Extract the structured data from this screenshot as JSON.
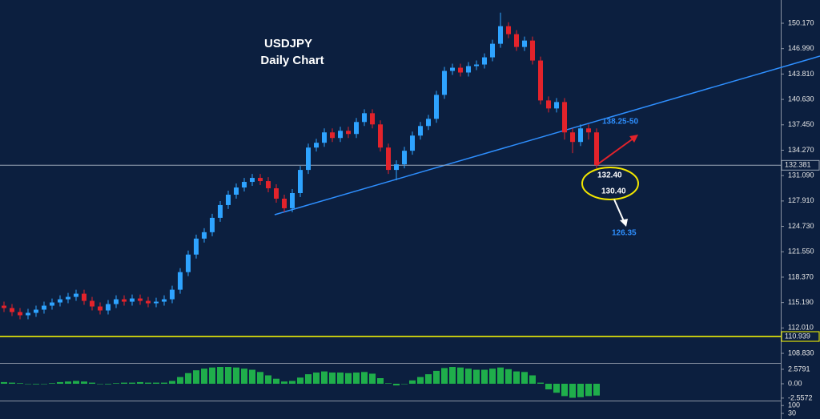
{
  "chart_data": [
    {
      "type": "candlestick",
      "title": "USDJPY",
      "subtitle": "Daily Chart",
      "open": [
        114.8,
        114.5,
        114.0,
        113.6,
        113.9,
        114.3,
        114.8,
        115.2,
        115.6,
        115.9,
        116.3,
        115.4,
        114.7,
        114.2,
        115.0,
        115.6,
        115.3,
        115.7,
        115.4,
        115.1,
        115.3,
        115.6,
        116.8,
        119.0,
        121.2,
        123.2,
        124.0,
        125.8,
        127.4,
        128.7,
        129.6,
        130.3,
        130.8,
        130.4,
        129.5,
        128.2,
        127.0,
        128.9,
        131.8,
        134.6,
        135.2,
        136.5,
        135.8,
        136.7,
        136.3,
        137.8,
        138.9,
        137.5,
        134.6,
        131.8,
        132.5,
        134.2,
        136.1,
        137.3,
        138.2,
        141.2,
        144.2,
        144.6,
        144.0,
        144.8,
        145.0,
        145.9,
        147.6,
        149.8,
        148.8,
        147.2,
        148.0,
        145.5,
        140.5,
        139.5,
        140.3,
        136.5,
        135.3,
        137.0,
        136.5
      ],
      "high": [
        115.3,
        115.0,
        114.5,
        114.4,
        114.8,
        115.3,
        115.7,
        116.1,
        116.4,
        116.8,
        116.8,
        115.9,
        115.2,
        115.5,
        116.1,
        116.1,
        116.2,
        116.2,
        115.9,
        115.8,
        116.1,
        117.3,
        119.5,
        121.7,
        123.7,
        124.5,
        126.3,
        127.9,
        129.2,
        130.1,
        130.8,
        131.3,
        131.3,
        130.9,
        130.0,
        128.7,
        129.4,
        132.3,
        135.1,
        135.7,
        137.0,
        137.0,
        137.2,
        137.2,
        138.3,
        139.4,
        139.4,
        138.0,
        135.1,
        133.0,
        134.7,
        136.6,
        137.8,
        138.7,
        141.7,
        144.7,
        145.1,
        145.1,
        145.3,
        145.5,
        146.4,
        148.1,
        151.5,
        150.3,
        149.3,
        148.5,
        148.5,
        146.0,
        141.0,
        140.8,
        140.8,
        137.0,
        137.5,
        137.5,
        137.0
      ],
      "low": [
        114.0,
        113.5,
        113.1,
        113.1,
        113.4,
        113.8,
        114.3,
        114.7,
        115.1,
        115.4,
        114.9,
        114.2,
        113.7,
        113.7,
        114.5,
        114.8,
        114.8,
        114.9,
        114.6,
        114.6,
        114.8,
        115.1,
        116.3,
        118.5,
        120.7,
        122.7,
        123.5,
        125.3,
        126.9,
        128.2,
        129.1,
        129.8,
        129.9,
        129.0,
        127.7,
        126.5,
        126.5,
        128.4,
        131.3,
        134.1,
        134.7,
        135.3,
        135.3,
        135.8,
        135.8,
        137.3,
        137.0,
        134.1,
        131.3,
        130.5,
        132.0,
        133.7,
        135.6,
        136.8,
        137.7,
        140.7,
        143.7,
        143.5,
        143.5,
        144.3,
        144.5,
        145.4,
        147.1,
        148.3,
        146.7,
        146.7,
        145.0,
        140.0,
        139.0,
        139.0,
        135.6,
        133.9,
        134.8,
        135.6,
        132.0
      ],
      "close": [
        114.5,
        114.0,
        113.6,
        113.9,
        114.3,
        114.8,
        115.2,
        115.6,
        115.9,
        116.3,
        115.4,
        114.7,
        114.2,
        115.0,
        115.6,
        115.3,
        115.7,
        115.4,
        115.1,
        115.3,
        115.6,
        116.8,
        119.0,
        121.2,
        123.2,
        124.0,
        125.8,
        127.4,
        128.7,
        129.6,
        130.3,
        130.8,
        130.4,
        129.5,
        128.2,
        127.0,
        128.9,
        131.8,
        134.6,
        135.2,
        136.5,
        135.8,
        136.7,
        136.3,
        137.8,
        138.9,
        137.5,
        134.6,
        131.8,
        132.5,
        134.2,
        136.1,
        137.3,
        138.2,
        141.2,
        144.2,
        144.6,
        144.0,
        144.8,
        145.0,
        145.9,
        147.6,
        149.8,
        148.8,
        147.2,
        148.0,
        145.5,
        140.5,
        139.5,
        140.3,
        136.5,
        135.3,
        137.0,
        136.5,
        132.4
      ],
      "up_color": "#2ea3ff",
      "down_color": "#e3232b",
      "ylim": [
        107.63,
        153.08
      ],
      "yticks": [
        {
          "value": 150.17,
          "label": "150.170"
        },
        {
          "value": 146.99,
          "label": "146.990"
        },
        {
          "value": 143.81,
          "label": "143.810"
        },
        {
          "value": 140.63,
          "label": "140.630"
        },
        {
          "value": 137.45,
          "label": "137.450"
        },
        {
          "value": 134.27,
          "label": "134.270"
        },
        {
          "value": 131.09,
          "label": "131.090"
        },
        {
          "value": 127.91,
          "label": "127.910"
        },
        {
          "value": 124.73,
          "label": "124.730"
        },
        {
          "value": 121.55,
          "label": "121.550"
        },
        {
          "value": 118.37,
          "label": "118.370"
        },
        {
          "value": 115.19,
          "label": "115.190"
        },
        {
          "value": 112.01,
          "label": "112.010"
        },
        {
          "value": 108.83,
          "label": "108.830"
        }
      ],
      "levels": [
        {
          "value": 132.381,
          "label": "132.381",
          "color": "#9aa6b6"
        },
        {
          "value": 110.939,
          "label": "110.939",
          "color": "#ffff00"
        }
      ],
      "annotations": [
        "138.25-50",
        "132.40",
        "130.40",
        "126.35"
      ]
    },
    {
      "type": "histogram",
      "color": "#1fae4b",
      "values": [
        0.3,
        0.2,
        0.1,
        0.0,
        -0.1,
        0.0,
        0.1,
        0.3,
        0.4,
        0.5,
        0.4,
        0.2,
        0.0,
        -0.1,
        0.1,
        0.2,
        0.2,
        0.3,
        0.2,
        0.2,
        0.2,
        0.5,
        1.2,
        1.9,
        2.4,
        2.7,
        2.9,
        3.0,
        3.0,
        2.9,
        2.7,
        2.5,
        2.1,
        1.5,
        0.9,
        0.4,
        0.5,
        1.1,
        1.7,
        2.0,
        2.2,
        2.0,
        2.0,
        1.9,
        2.0,
        2.1,
        1.8,
        1.0,
        0.1,
        -0.3,
        0.0,
        0.6,
        1.2,
        1.7,
        2.3,
        2.8,
        3.0,
        2.9,
        2.7,
        2.5,
        2.5,
        2.7,
        2.9,
        2.6,
        2.2,
        2.1,
        1.5,
        0.2,
        -1.0,
        -1.6,
        -2.2,
        -2.5,
        -2.4,
        -2.2,
        -2.1
      ],
      "ylim": [
        -3.0,
        3.43
      ],
      "yticks": [
        {
          "value": 2.5791,
          "label": "2.5791"
        },
        {
          "value": 0,
          "label": "0.00"
        },
        {
          "value": -2.5572,
          "label": "-2.5572"
        }
      ]
    },
    {
      "type": "oscillator",
      "ylim": [
        -20,
        130
      ],
      "yticks": [
        100,
        30
      ]
    }
  ]
}
